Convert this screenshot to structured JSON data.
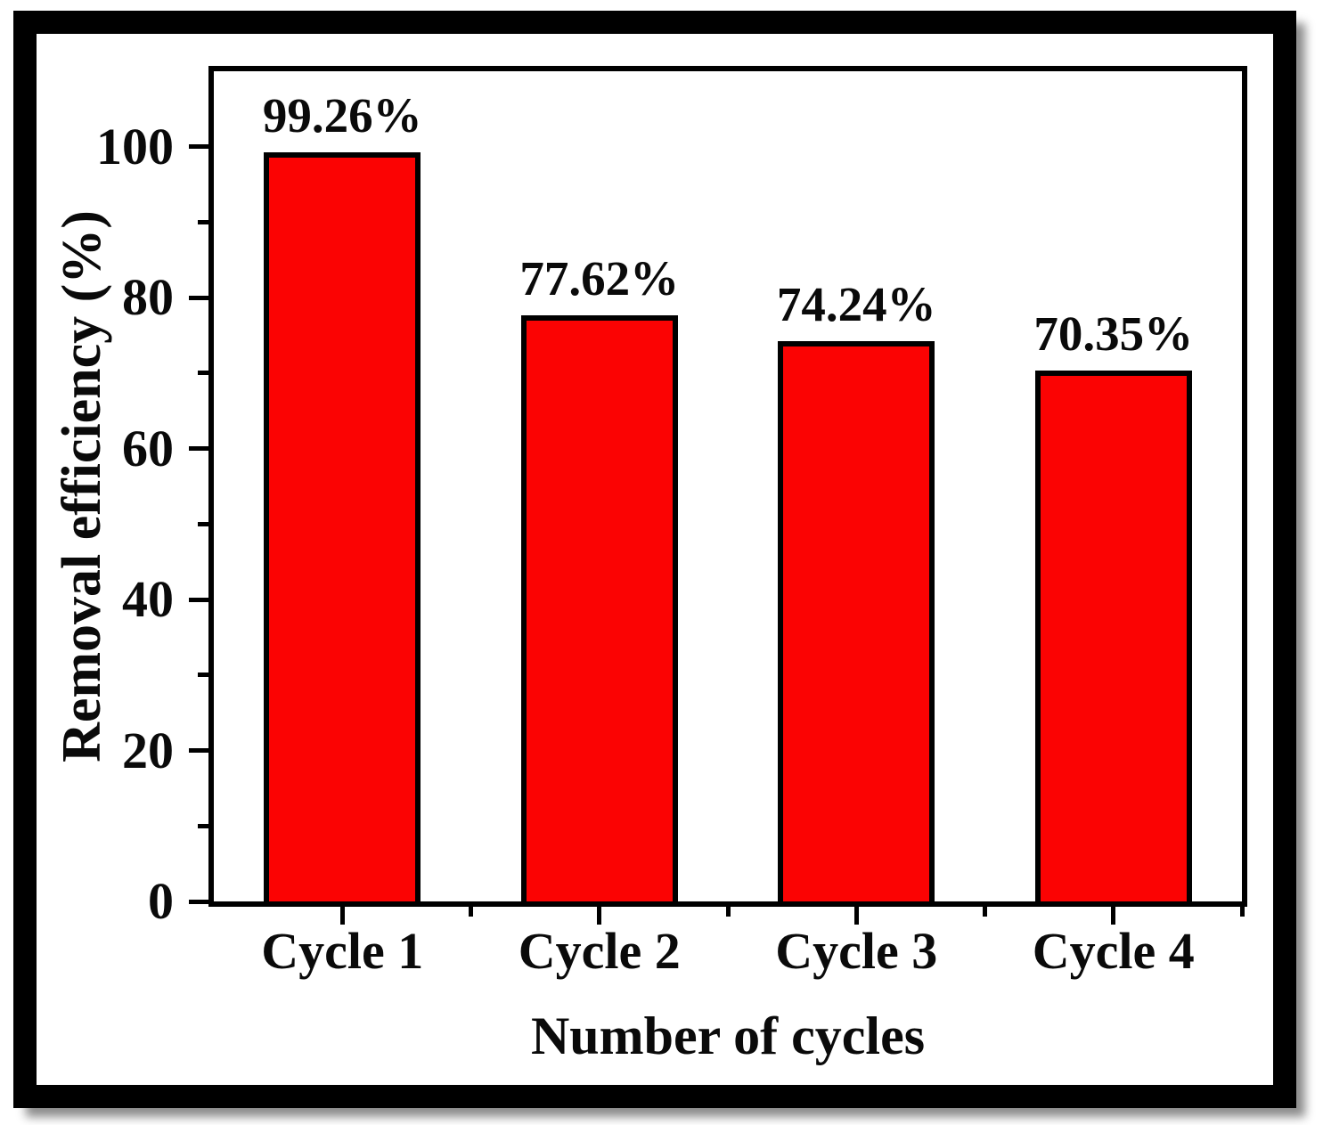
{
  "figure": {
    "background_color": "#ffffff",
    "frame_color": "#000000"
  },
  "chart_data": {
    "type": "bar",
    "title": "",
    "categories": [
      "Cycle 1",
      "Cycle 2",
      "Cycle 3",
      "Cycle 4"
    ],
    "values": [
      99.26,
      77.62,
      74.24,
      70.35
    ],
    "bar_labels": [
      "99.26%",
      "77.62%",
      "74.24%",
      "70.35%"
    ],
    "xlabel": "Number of cycles",
    "ylabel": "Removal efficiency (%)",
    "ylim": [
      0,
      110
    ],
    "y_major_ticks": [
      0,
      20,
      40,
      60,
      80,
      100
    ],
    "y_minor_ticks": [
      10,
      30,
      50,
      70,
      90
    ],
    "x_minor_boundaries": [
      1,
      2,
      3,
      4
    ],
    "grid": false,
    "legend": null,
    "bar_color": "#fb0303",
    "bar_border_color": "#000000",
    "text_color": "#0a0a0a"
  }
}
